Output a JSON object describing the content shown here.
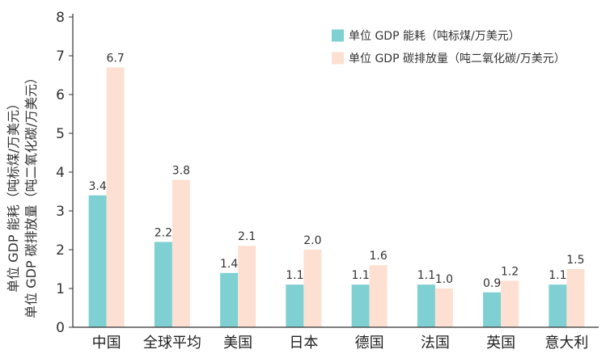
{
  "chart_data": {
    "type": "bar",
    "title": "",
    "xlabel": "",
    "ylabel_lines": [
      "单位 GDP 能耗（吨标煤/万美元）",
      "单位 GDP 碳排放量（吨二氧化碳/万美元）"
    ],
    "ylim": [
      0,
      8
    ],
    "yticks": [
      0,
      1,
      2,
      3,
      4,
      5,
      6,
      7,
      8
    ],
    "grid": false,
    "legend_position": "top-right",
    "categories": [
      "中国",
      "全球平均",
      "美国",
      "日本",
      "德国",
      "法国",
      "英国",
      "意大利"
    ],
    "series": [
      {
        "name": "单位 GDP 能耗（吨标煤/万美元）",
        "color": "#7fd0d2",
        "values": [
          3.4,
          2.2,
          1.4,
          1.1,
          1.1,
          1.1,
          0.9,
          1.1
        ],
        "labels": [
          "3.4",
          "2.2",
          "1.4",
          "1.1",
          "1.1",
          "1.1",
          "0.9",
          "1.1"
        ]
      },
      {
        "name": "单位 GDP 碳排放量（吨二氧化碳/万美元）",
        "color": "#fde0d2",
        "values": [
          6.7,
          3.8,
          2.1,
          2.0,
          1.6,
          1.0,
          1.2,
          1.5
        ],
        "labels": [
          "6.7",
          "3.8",
          "2.1",
          "2.0",
          "1.6",
          "1.0",
          "1.2",
          "1.5"
        ]
      }
    ]
  }
}
